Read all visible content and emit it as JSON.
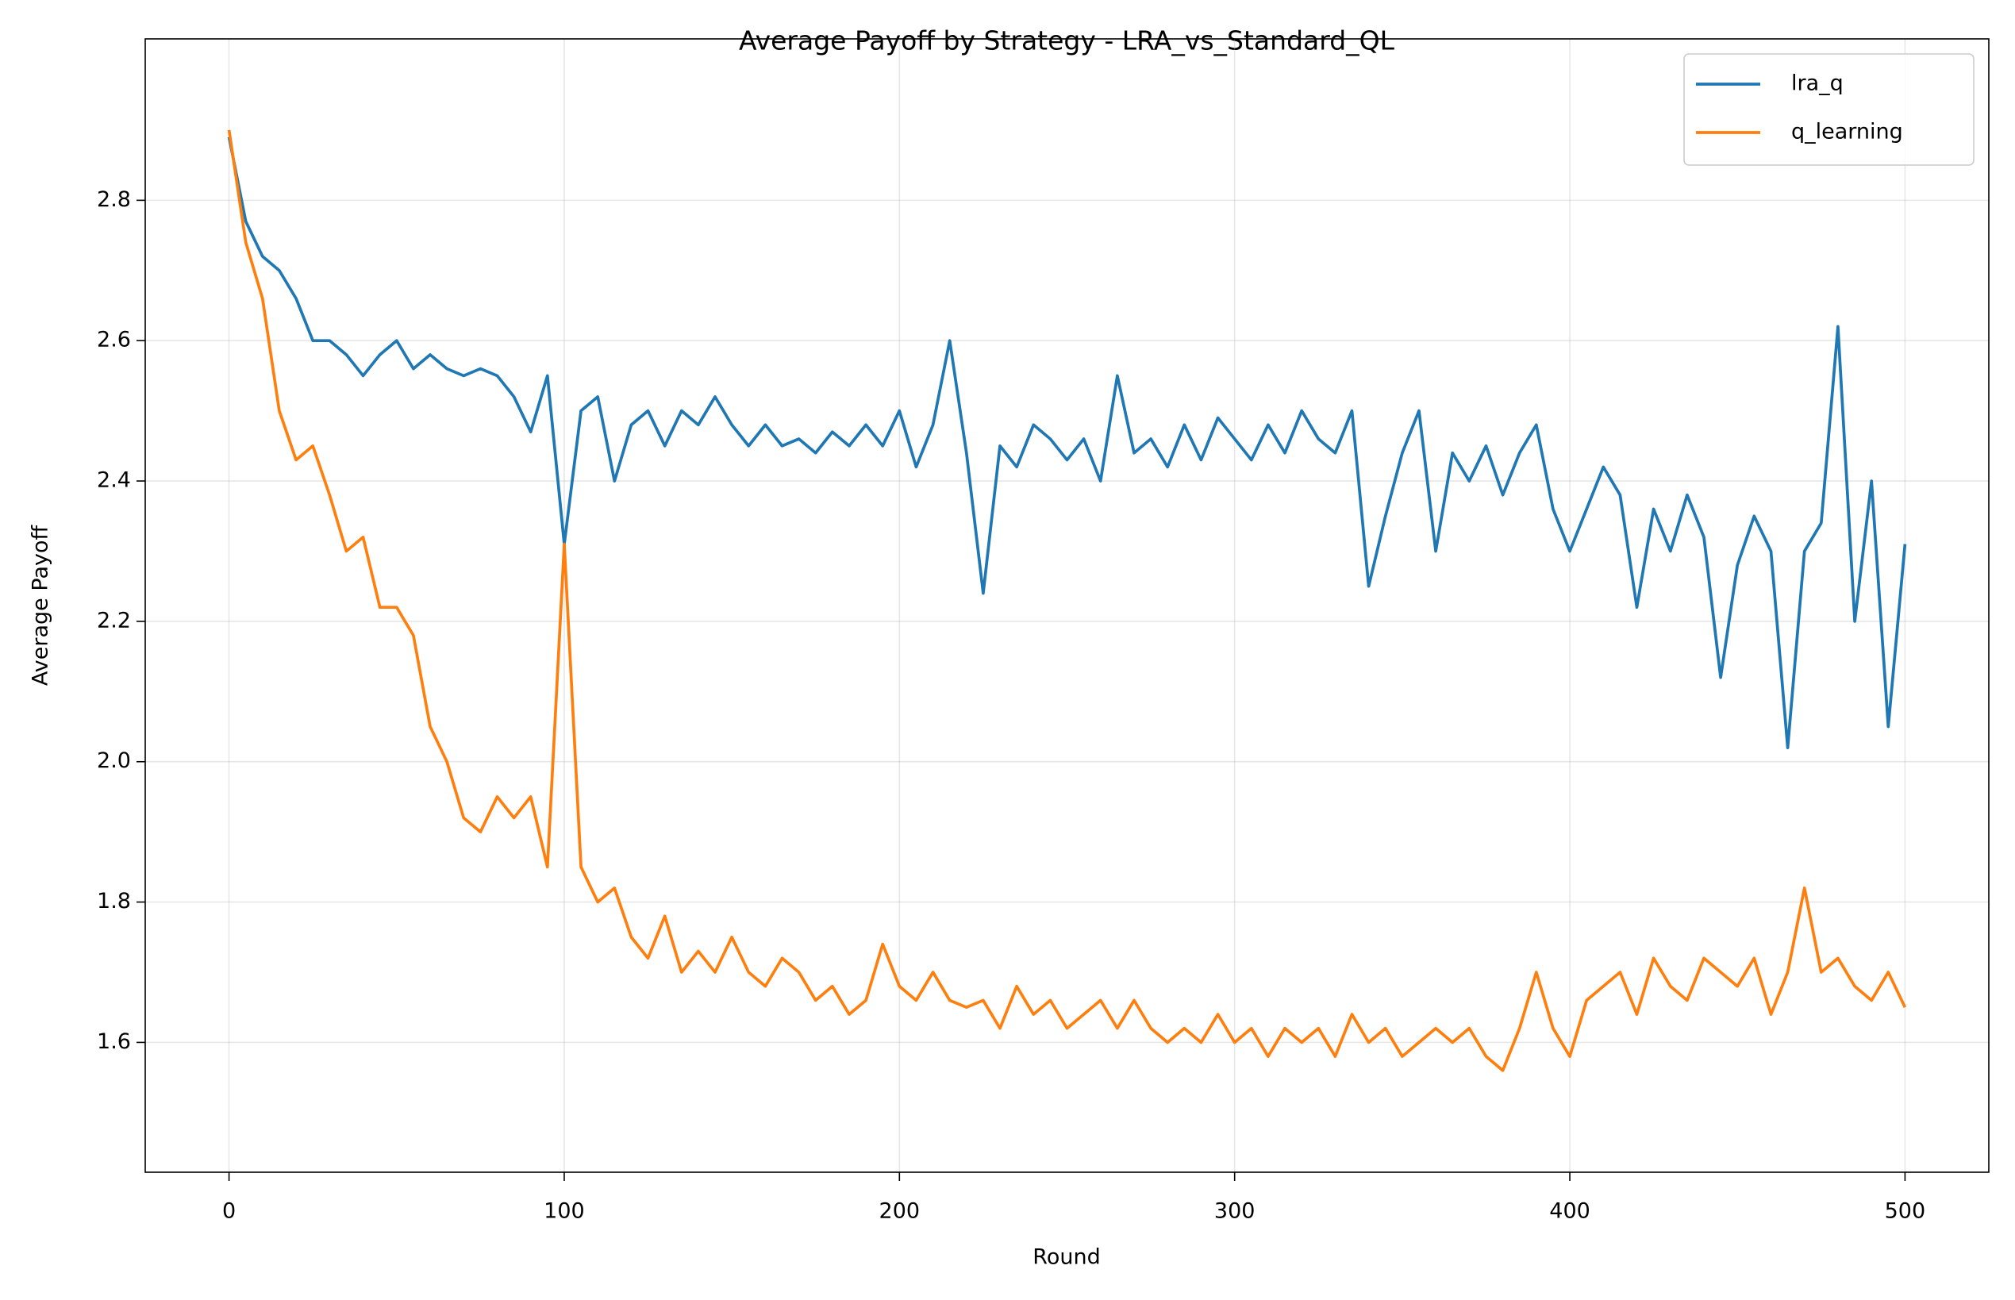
{
  "chart_data": {
    "type": "line",
    "title": "Average Payoff by Strategy - LRA_vs_Standard_QL",
    "x_label": "Round",
    "y_label": "Average Payoff",
    "x": [
      0,
      5,
      10,
      15,
      20,
      25,
      30,
      35,
      40,
      45,
      50,
      55,
      60,
      65,
      70,
      75,
      80,
      85,
      90,
      95,
      100,
      105,
      110,
      115,
      120,
      125,
      130,
      135,
      140,
      145,
      150,
      155,
      160,
      165,
      170,
      175,
      180,
      185,
      190,
      195,
      200,
      205,
      210,
      215,
      220,
      225,
      230,
      235,
      240,
      245,
      250,
      255,
      260,
      265,
      270,
      275,
      280,
      285,
      290,
      295,
      300,
      305,
      310,
      315,
      320,
      325,
      330,
      335,
      340,
      345,
      350,
      355,
      360,
      365,
      370,
      375,
      380,
      385,
      390,
      395,
      400,
      405,
      410,
      415,
      420,
      425,
      430,
      435,
      440,
      445,
      450,
      455,
      460,
      465,
      470,
      475,
      480,
      485,
      490,
      495,
      500
    ],
    "series": [
      {
        "name": "lra_q",
        "color": "#1f77b4",
        "values": [
          2.89,
          2.77,
          2.72,
          2.7,
          2.66,
          2.6,
          2.6,
          2.58,
          2.55,
          2.58,
          2.6,
          2.56,
          2.58,
          2.56,
          2.55,
          2.56,
          2.55,
          2.52,
          2.47,
          2.55,
          2.31,
          2.5,
          2.52,
          2.4,
          2.48,
          2.5,
          2.45,
          2.5,
          2.48,
          2.52,
          2.48,
          2.45,
          2.48,
          2.45,
          2.46,
          2.44,
          2.47,
          2.45,
          2.48,
          2.45,
          2.5,
          2.42,
          2.48,
          2.6,
          2.44,
          2.24,
          2.45,
          2.42,
          2.48,
          2.46,
          2.43,
          2.46,
          2.4,
          2.55,
          2.44,
          2.46,
          2.42,
          2.48,
          2.43,
          2.49,
          2.46,
          2.43,
          2.48,
          2.44,
          2.5,
          2.46,
          2.44,
          2.5,
          2.25,
          2.35,
          2.44,
          2.5,
          2.3,
          2.44,
          2.4,
          2.45,
          2.38,
          2.44,
          2.48,
          2.36,
          2.3,
          2.36,
          2.42,
          2.38,
          2.22,
          2.36,
          2.3,
          2.38,
          2.32,
          2.12,
          2.28,
          2.35,
          2.3,
          2.02,
          2.3,
          2.34,
          2.62,
          2.2,
          2.4,
          2.05,
          2.31
        ]
      },
      {
        "name": "q_learning",
        "color": "#ff7f0e",
        "values": [
          2.9,
          2.74,
          2.66,
          2.5,
          2.43,
          2.45,
          2.38,
          2.3,
          2.32,
          2.22,
          2.22,
          2.18,
          2.05,
          2.0,
          1.92,
          1.9,
          1.95,
          1.92,
          1.95,
          1.85,
          2.31,
          1.85,
          1.8,
          1.82,
          1.75,
          1.72,
          1.78,
          1.7,
          1.73,
          1.7,
          1.75,
          1.7,
          1.68,
          1.72,
          1.7,
          1.66,
          1.68,
          1.64,
          1.66,
          1.74,
          1.68,
          1.66,
          1.7,
          1.66,
          1.65,
          1.66,
          1.62,
          1.68,
          1.64,
          1.66,
          1.62,
          1.64,
          1.66,
          1.62,
          1.66,
          1.62,
          1.6,
          1.62,
          1.6,
          1.64,
          1.6,
          1.62,
          1.58,
          1.62,
          1.6,
          1.62,
          1.58,
          1.64,
          1.6,
          1.62,
          1.58,
          1.6,
          1.62,
          1.6,
          1.62,
          1.58,
          1.56,
          1.62,
          1.7,
          1.62,
          1.58,
          1.66,
          1.68,
          1.7,
          1.64,
          1.72,
          1.68,
          1.66,
          1.72,
          1.7,
          1.68,
          1.72,
          1.64,
          1.7,
          1.82,
          1.7,
          1.72,
          1.68,
          1.66,
          1.7,
          1.65
        ]
      }
    ],
    "xlim": [
      -25,
      525
    ],
    "ylim": [
      1.415,
      3.03
    ],
    "xticks": [
      0,
      100,
      200,
      300,
      400,
      500
    ],
    "yticks": [
      1.6,
      1.8,
      {
        "value": 2,
        "label": "2.0"
      },
      2.2,
      2.4,
      2.6,
      2.8
    ],
    "grid": true,
    "legend": "upper-right"
  }
}
